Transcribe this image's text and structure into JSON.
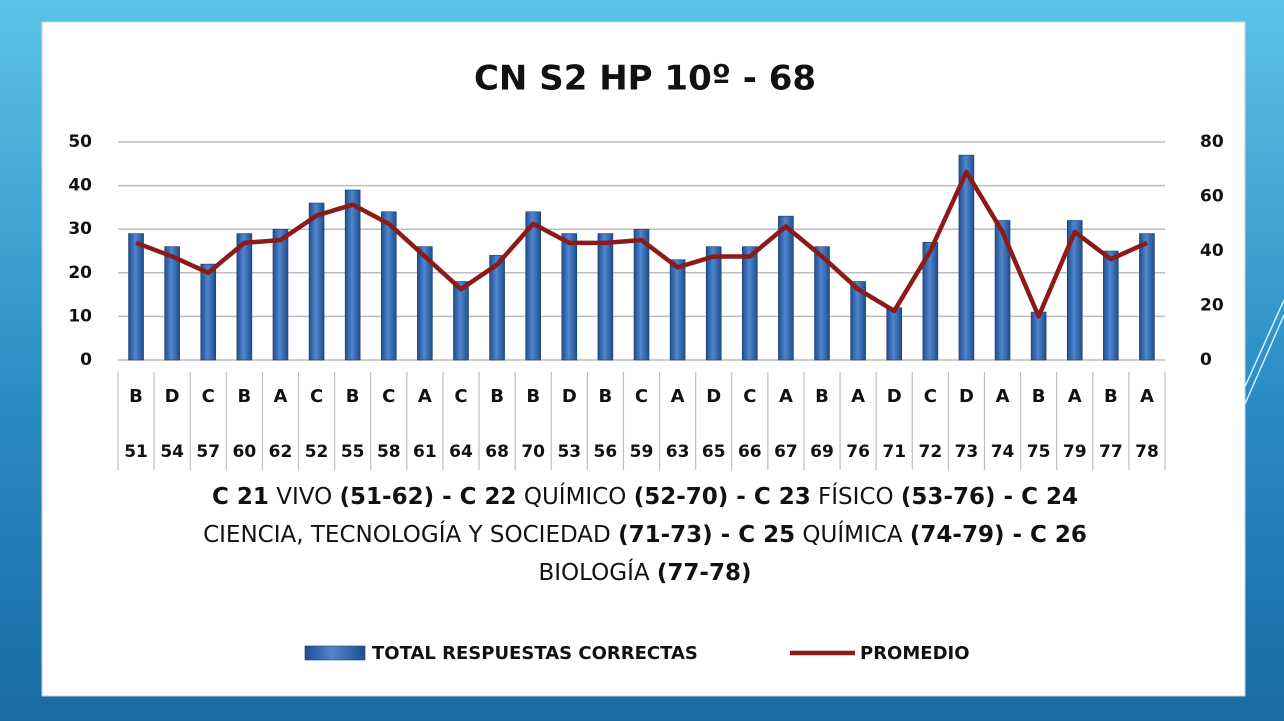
{
  "chart_data": {
    "type": "bar-line",
    "title": "CN S2 HP 10º - 68",
    "categories": [
      "B",
      "D",
      "C",
      "B",
      "A",
      "C",
      "B",
      "C",
      "A",
      "C",
      "B",
      "B",
      "D",
      "B",
      "C",
      "A",
      "D",
      "C",
      "A",
      "B",
      "A",
      "D",
      "C",
      "D",
      "A",
      "B",
      "A",
      "B",
      "A"
    ],
    "categories2": [
      "51",
      "54",
      "57",
      "60",
      "62",
      "52",
      "55",
      "58",
      "61",
      "64",
      "68",
      "70",
      "53",
      "56",
      "59",
      "63",
      "65",
      "66",
      "67",
      "69",
      "76",
      "71",
      "72",
      "73",
      "74",
      "75",
      "79",
      "77",
      "78"
    ],
    "series": [
      {
        "name": "TOTAL RESPUESTAS CORRECTAS",
        "color": "#2e5fa3",
        "type": "bar",
        "values": [
          29,
          26,
          22,
          29,
          30,
          36,
          39,
          34,
          26,
          18,
          24,
          34,
          29,
          29,
          30,
          23,
          26,
          26,
          33,
          26,
          18,
          12,
          27,
          47,
          32,
          11,
          32,
          25,
          29
        ]
      },
      {
        "name": "PROMEDIO",
        "color": "#8b1a1a",
        "type": "line",
        "axis": "y2",
        "values": [
          43,
          38,
          32,
          43,
          44,
          53,
          57,
          50,
          38,
          26,
          35,
          50,
          43,
          43,
          44,
          34,
          38,
          38,
          49,
          38,
          26,
          18,
          40,
          69,
          47,
          16,
          47,
          37,
          43
        ]
      }
    ],
    "ylim": [
      0,
      50
    ],
    "yticks": [
      0,
      10,
      20,
      30,
      40,
      50
    ],
    "y2lim": [
      0,
      80
    ],
    "y2ticks": [
      0,
      20,
      40,
      60,
      80
    ],
    "grid": true,
    "note": [
      {
        "text": "C 21",
        "bold": true
      },
      {
        "text": " VIVO ",
        "bold": false
      },
      {
        "text": "(51-62) - C 22",
        "bold": true
      },
      {
        "text": " QUÍMICO ",
        "bold": false
      },
      {
        "text": "(52-70) - C 23",
        "bold": true
      },
      {
        "text": " FÍSICO ",
        "bold": false
      },
      {
        "text": "(53-76) - C 24",
        "bold": true
      },
      {
        "text": " CIENCIA, TECNOLOGÍA Y SOCIEDAD ",
        "bold": false
      },
      {
        "text": "(71-73) - C 25",
        "bold": true
      },
      {
        "text": " QUÍMICA ",
        "bold": false
      },
      {
        "text": "(74-79) - C 26",
        "bold": true
      },
      {
        "text": " BIOLOGÍA ",
        "bold": false
      },
      {
        "text": "(77-78)",
        "bold": true
      }
    ]
  }
}
